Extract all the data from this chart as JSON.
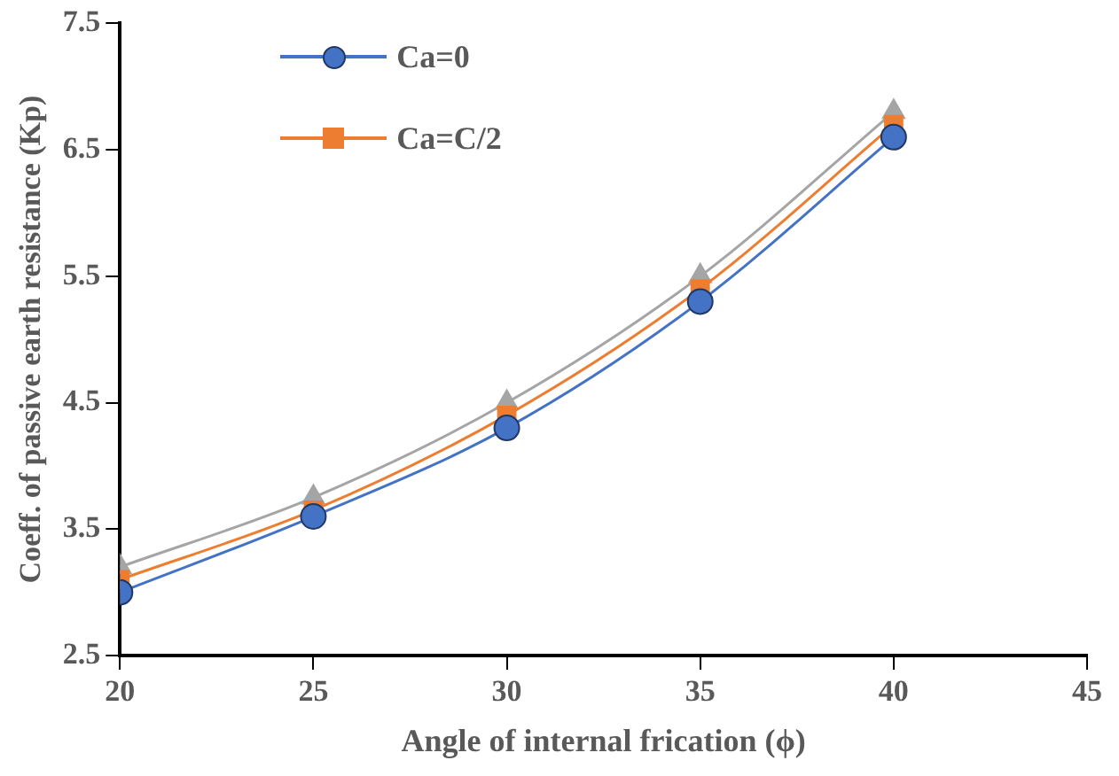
{
  "chart_data": {
    "type": "line",
    "xlabel": "Angle of internal frication (ϕ)",
    "ylabel": "Coeff. of passive earth resistance (Kp)",
    "x": [
      20,
      25,
      30,
      35,
      40
    ],
    "series": [
      {
        "name": "Ca=0",
        "color": "#4472c4",
        "marker": "circle",
        "values": [
          3.0,
          3.6,
          4.3,
          5.3,
          6.6
        ]
      },
      {
        "name": "Ca=C/2",
        "color": "#ed7d31",
        "marker": "square",
        "values": [
          3.1,
          3.65,
          4.4,
          5.4,
          6.7
        ]
      },
      {
        "color": "#a5a5a5",
        "marker": "triangle",
        "values": [
          3.2,
          3.75,
          4.5,
          5.5,
          6.8
        ]
      }
    ],
    "xlim": [
      20,
      45
    ],
    "xticks": [
      20,
      25,
      30,
      35,
      40,
      45
    ],
    "ylim": [
      2.5,
      7.5
    ],
    "yticks": [
      2.5,
      3.5,
      4.5,
      5.5,
      6.5,
      7.5
    ],
    "grid": false,
    "legend": "top left",
    "line_style": "solid"
  }
}
